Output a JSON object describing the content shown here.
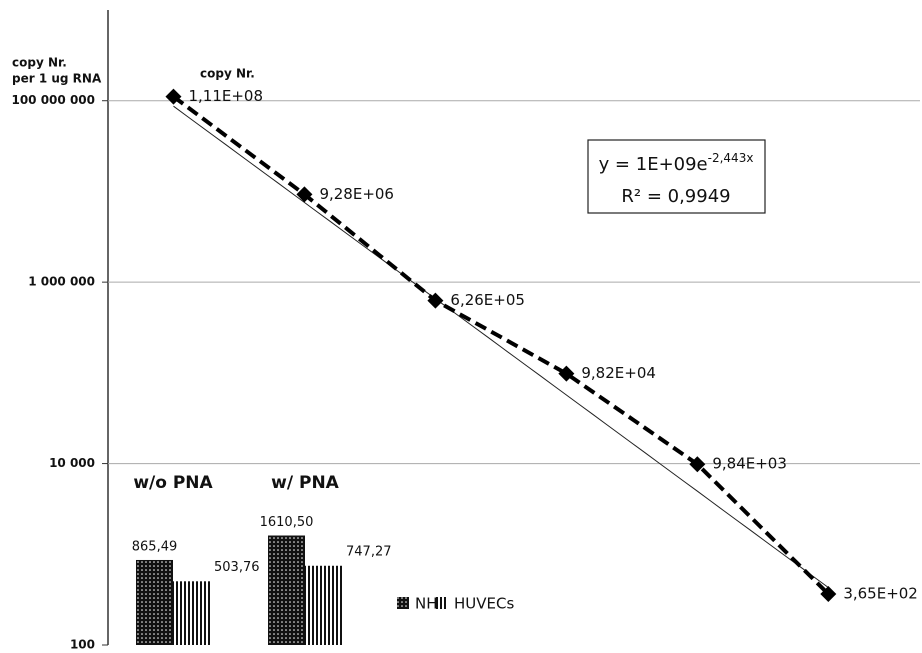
{
  "chart_data": [
    {
      "type": "line",
      "ylabel_lines": [
        "copy Nr.",
        "per 1 ug RNA"
      ],
      "annotation": "copy Nr.",
      "x": [
        1,
        2,
        3,
        4,
        5,
        6
      ],
      "xlim": [
        0.5,
        6.7
      ],
      "values": [
        111000000,
        9280000,
        626000,
        98200,
        9840,
        365
      ],
      "value_labels": [
        "1,11E+08",
        "9,28E+06",
        "6,26E+05",
        "9,82E+04",
        "9,84E+03",
        "3,65E+02"
      ],
      "color": "#000000",
      "line_style": "dashed",
      "marker": "diamond",
      "log_scale": true,
      "ylim": [
        100,
        1000000000
      ],
      "yticks": [
        100,
        {
          "value": 10000,
          "label": "10 000"
        },
        {
          "value": 1000000,
          "label": "1 000 000"
        },
        {
          "value": 100000000,
          "label": "100 000 000"
        }
      ],
      "grid": true,
      "trendline": {
        "coefficient": 1000000000,
        "coefficient_label": "y = 1E+09e",
        "rate": -2.443,
        "rate_label": "-2,443x",
        "r_squared": 0.9949,
        "r_squared_label": "R² = 0,9949"
      }
    },
    {
      "type": "bar",
      "categories": [
        "w/o PNA",
        "w/ PNA"
      ],
      "series": [
        {
          "name": "NHA",
          "color": "#111111",
          "pattern": "dots",
          "values": [
            865.49,
            1610.5
          ],
          "value_labels": [
            "865,49",
            "1610,50"
          ]
        },
        {
          "name": "HUVECs",
          "color": "#111111",
          "pattern": "stripes",
          "values": [
            503.76,
            747.27
          ],
          "value_labels": [
            "503,76",
            "747,27"
          ]
        }
      ],
      "log_scale": true,
      "ylim": [
        100,
        1000000000
      ]
    }
  ]
}
